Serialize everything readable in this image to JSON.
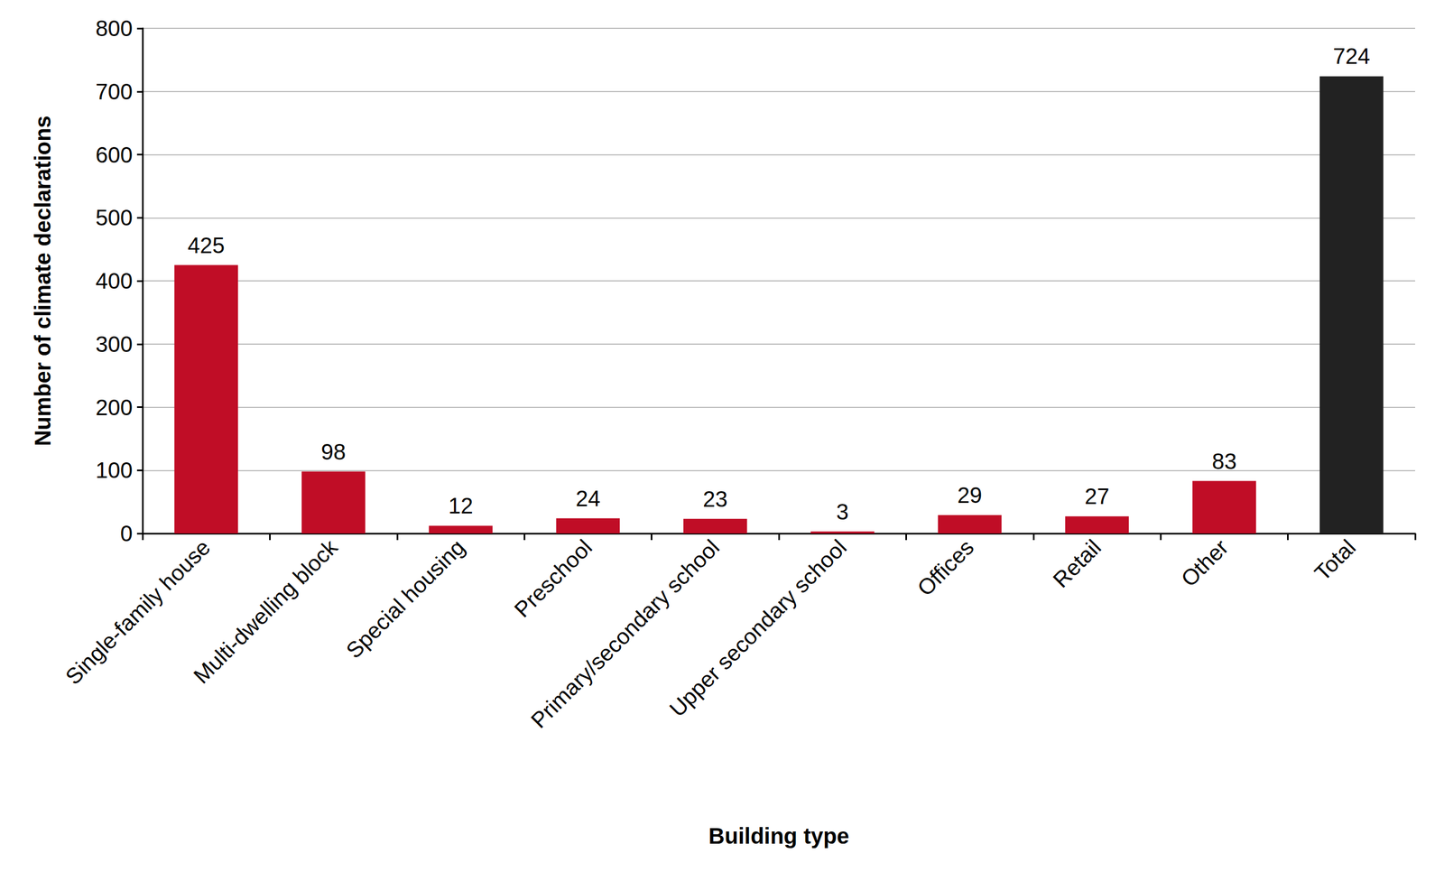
{
  "chart_data": {
    "type": "bar",
    "x_label": "Building type",
    "y_label": "Number of climate declarations",
    "categories": [
      "Single-family house",
      "Multi-dwelling block",
      "Special housing",
      "Preschool",
      "Primary/secondary school",
      "Upper secondary school",
      "Offices",
      "Retail",
      "Other",
      "Total"
    ],
    "values": [
      425,
      98,
      12,
      24,
      23,
      3,
      29,
      27,
      83,
      724
    ],
    "colors": [
      "#c00d26",
      "#c00d26",
      "#c00d26",
      "#c00d26",
      "#c00d26",
      "#c00d26",
      "#c00d26",
      "#c00d26",
      "#c00d26",
      "#222222"
    ],
    "ylim": [
      0,
      800
    ],
    "yticks": [
      0,
      100,
      200,
      300,
      400,
      500,
      600,
      700,
      800
    ],
    "grid": true,
    "data_labels": true
  }
}
